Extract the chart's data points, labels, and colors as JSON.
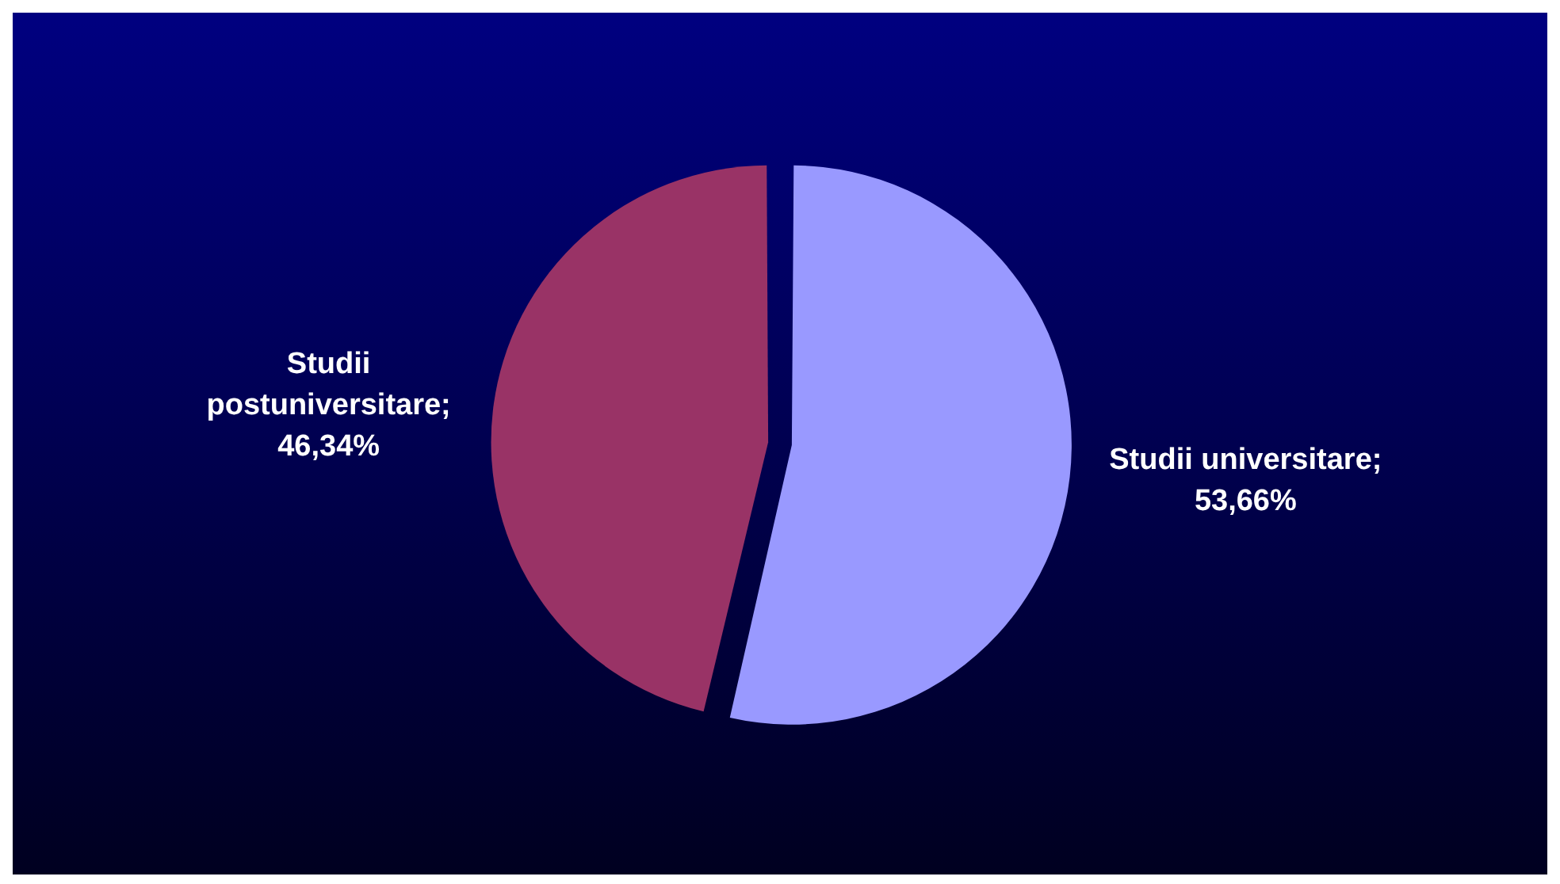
{
  "chart_data": {
    "type": "pie",
    "categories": [
      "Studii universitare",
      "Studii postuniversitare"
    ],
    "values": [
      53.66,
      46.34
    ],
    "colors": [
      "#9999ff",
      "#993366"
    ],
    "value_labels": [
      "; 53,66%",
      "; 46,34%"
    ],
    "legend": false
  }
}
